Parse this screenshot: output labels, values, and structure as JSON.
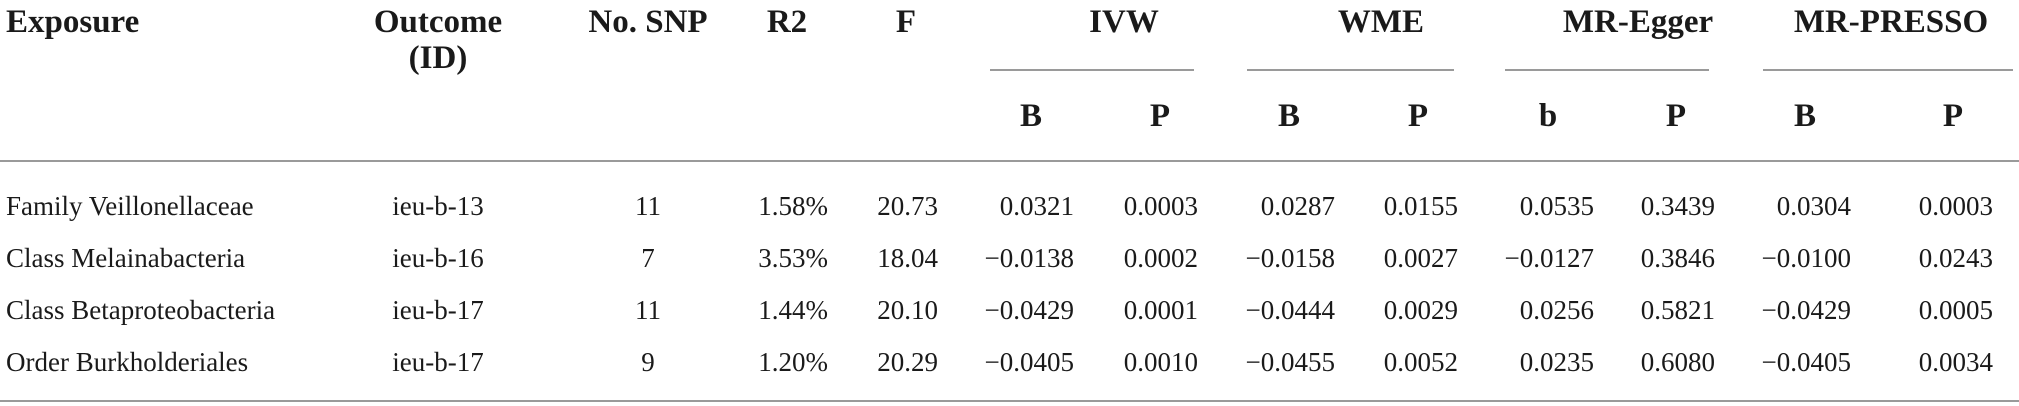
{
  "table": {
    "headers": {
      "exposure": "Exposure",
      "outcome_line1": "Outcome",
      "outcome_line2": "(ID)",
      "snp": "No. SNP",
      "r2": "R2",
      "f": "F"
    },
    "groups": [
      {
        "label": "IVW",
        "sub": [
          "B",
          "P"
        ]
      },
      {
        "label": "WME",
        "sub": [
          "B",
          "P"
        ]
      },
      {
        "label": "MR-Egger",
        "sub": [
          "b",
          "P"
        ]
      },
      {
        "label": "MR-PRESSO",
        "sub": [
          "B",
          "P"
        ]
      }
    ],
    "rows": [
      [
        "Family Veillonellaceae",
        "ieu-b-13",
        "11",
        "1.58%",
        "20.73",
        "0.0321",
        "0.0003",
        "0.0287",
        "0.0155",
        "0.0535",
        "0.3439",
        "0.0304",
        "0.0003"
      ],
      [
        "Class Melainabacteria",
        "ieu-b-16",
        "7",
        "3.53%",
        "18.04",
        "−0.0138",
        "0.0002",
        "−0.0158",
        "0.0027",
        "−0.0127",
        "0.3846",
        "−0.0100",
        "0.0243"
      ],
      [
        "Class Betaproteobacteria",
        "ieu-b-17",
        "11",
        "1.44%",
        "20.10",
        "−0.0429",
        "0.0001",
        "−0.0444",
        "0.0029",
        "0.0256",
        "0.5821",
        "−0.0429",
        "0.0005"
      ],
      [
        "Order Burkholderiales",
        "ieu-b-17",
        "9",
        "1.20%",
        "20.29",
        "−0.0405",
        "0.0010",
        "−0.0455",
        "0.0052",
        "0.0235",
        "0.6080",
        "−0.0405",
        "0.0034"
      ]
    ]
  }
}
